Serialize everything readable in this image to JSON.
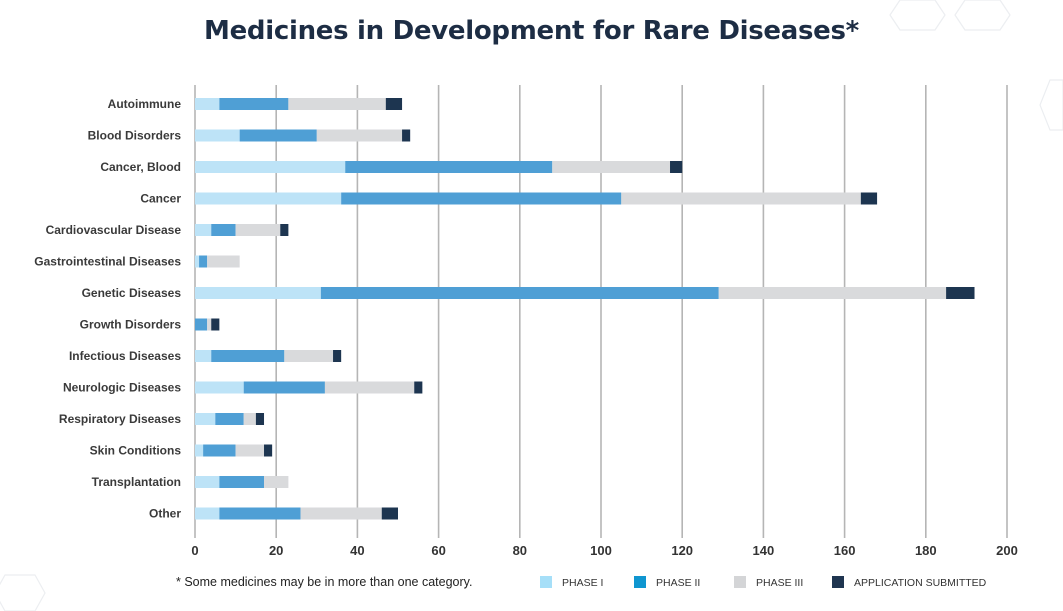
{
  "chart_data": {
    "type": "bar",
    "orientation": "horizontal",
    "stacked": true,
    "title": "Medicines in Development for Rare Diseases*",
    "footnote": "* Some medicines may be in more than one category.",
    "categories": [
      "Autoimmune",
      "Blood Disorders",
      "Cancer, Blood",
      "Cancer",
      "Cardiovascular Disease",
      "Gastrointestinal Diseases",
      "Genetic Diseases",
      "Growth Disorders",
      "Infectious Diseases",
      "Neurologic Diseases",
      "Respiratory Diseases",
      "Skin Conditions",
      "Transplantation",
      "Other"
    ],
    "series": [
      {
        "name": "PHASE I",
        "color": "#bde3f7",
        "legend_color": "#a6dff8",
        "values": [
          6,
          11,
          37,
          36,
          4,
          1,
          31,
          0,
          4,
          12,
          5,
          2,
          6,
          6
        ]
      },
      {
        "name": "PHASE II",
        "color": "#4f9fd5",
        "legend_color": "#0f96d0",
        "values": [
          17,
          19,
          51,
          69,
          6,
          2,
          98,
          3,
          18,
          20,
          7,
          8,
          11,
          20
        ]
      },
      {
        "name": "PHASE III",
        "color": "#d9dadc",
        "legend_color": "#d4d5d7",
        "values": [
          24,
          21,
          29,
          59,
          11,
          8,
          56,
          1,
          12,
          22,
          3,
          7,
          6,
          20
        ]
      },
      {
        "name": "APPLICATION SUBMITTED",
        "color": "#1d3550",
        "legend_color": "#1f3550",
        "values": [
          4,
          2,
          3,
          4,
          2,
          0,
          7,
          2,
          2,
          2,
          2,
          2,
          0,
          4
        ]
      }
    ],
    "xlim": [
      0,
      200
    ],
    "xticks": [
      0,
      20,
      40,
      60,
      80,
      100,
      120,
      140,
      160,
      180,
      200
    ],
    "grid": true,
    "legend_placement": "bottom-right"
  }
}
